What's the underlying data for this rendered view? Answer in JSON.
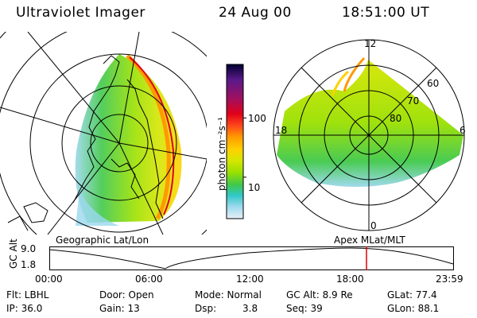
{
  "header": {
    "instrument": "Ultraviolet Imager",
    "date": "24 Aug 00",
    "time": "18:51:00 UT"
  },
  "panels": {
    "left_label": "Geographic Lat/Lon",
    "right_label": "Apex MLat/MLT"
  },
  "colorbar": {
    "unit_label": "photon cm⁻²s⁻¹",
    "ticks": [
      "100",
      "10"
    ],
    "tick_values": [
      100,
      10
    ],
    "range": [
      2,
      800
    ],
    "scale": "log",
    "colors": [
      "#000030",
      "#5a1a8a",
      "#a01060",
      "#e0001a",
      "#ff4a1a",
      "#ff9a00",
      "#ffd000",
      "#d8e600",
      "#9ae000",
      "#40c84a",
      "#30c8c8",
      "#9ad8ec",
      "#e8f0f8"
    ]
  },
  "polar_grid": {
    "mlt_labels": {
      "top": "12",
      "right": "6",
      "bottom": "0",
      "left": "18"
    },
    "lat_labels": [
      "60",
      "70",
      "80"
    ]
  },
  "altitude_plot": {
    "ylabel": "GC Alt",
    "yticks": [
      "9.0",
      "1.8"
    ],
    "xticks": [
      "00:00",
      "06:00",
      "12:00",
      "18:00",
      "23:59"
    ],
    "current_time_hours": 18.85,
    "marker_color": "#e00000"
  },
  "info": {
    "filter": "Flt: LBHL",
    "ip": "IP: 36.0",
    "door": "Door: Open",
    "gain": "Gain: 13",
    "mode": "Mode: Normal",
    "dsp_label": "Dsp:",
    "dsp_value": "3.8",
    "gc_alt": "GC Alt: 8.9 Re",
    "seq": "Seq: 39",
    "glat": "GLat: 77.4",
    "glon": "GLon: 88.1"
  }
}
